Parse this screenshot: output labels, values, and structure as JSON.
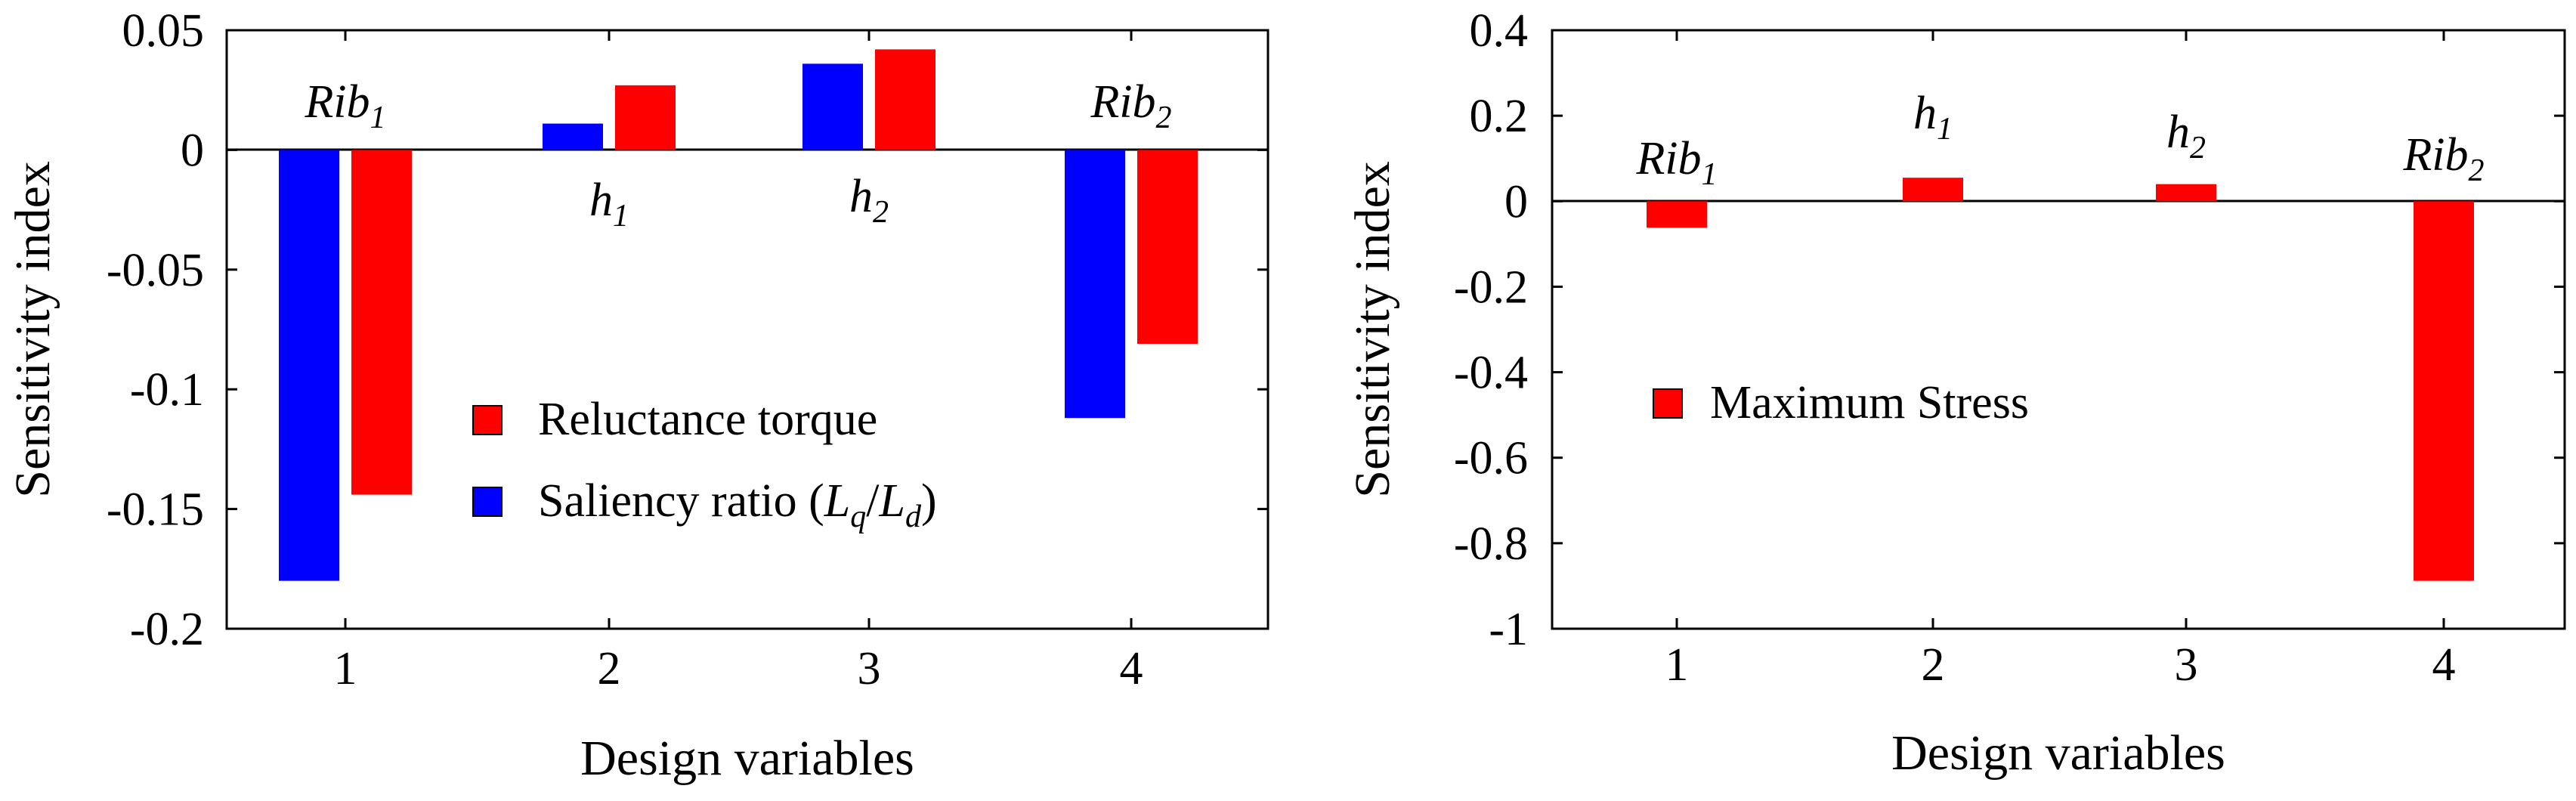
{
  "chart_data": [
    {
      "type": "bar",
      "xlabel": "Design variables",
      "ylabel": "Sensitivity index",
      "categories": [
        "1",
        "2",
        "3",
        "4"
      ],
      "ylim": [
        -0.2,
        0.05
      ],
      "yticks": [
        0.05,
        0,
        -0.05,
        -0.1,
        -0.15,
        -0.2
      ],
      "ytick_labels": [
        "0.05",
        "0",
        "-0.05",
        "-0.1",
        "-0.15",
        "-0.2"
      ],
      "series": [
        {
          "name": "Saliency ratio (Lq/Ld)",
          "label_main": "Saliency ratio (",
          "label_q": "L",
          "label_q_sub": "q",
          "label_slash": "/",
          "label_d": "L",
          "label_d_sub": "d",
          "label_close": ")",
          "color": "#0000ff",
          "values": [
            -0.18,
            0.011,
            0.036,
            -0.112
          ]
        },
        {
          "name": "Reluctance torque",
          "color": "#ff0000",
          "values": [
            -0.144,
            0.027,
            0.042,
            -0.081
          ]
        }
      ],
      "legend_order": [
        1,
        0
      ],
      "legend_position": "center",
      "variable_labels": [
        {
          "base": "Rib",
          "sub": "1"
        },
        {
          "base": "h",
          "sub": "1"
        },
        {
          "base": "h",
          "sub": "2"
        },
        {
          "base": "Rib",
          "sub": "2"
        }
      ]
    },
    {
      "type": "bar",
      "xlabel": "Design variables",
      "ylabel": "Sensitivity index",
      "categories": [
        "1",
        "2",
        "3",
        "4"
      ],
      "ylim": [
        -1,
        0.4
      ],
      "yticks": [
        0.4,
        0.2,
        0,
        -0.2,
        -0.4,
        -0.6,
        -0.8,
        -1
      ],
      "ytick_labels": [
        "0.4",
        "0.2",
        "0",
        "-0.2",
        "-0.4",
        "-0.6",
        "-0.8",
        "-1"
      ],
      "series": [
        {
          "name": "Maximum Stress",
          "color": "#ff0000",
          "values": [
            -0.062,
            0.055,
            0.04,
            -0.888
          ]
        }
      ],
      "legend_order": [
        0
      ],
      "legend_position": "center-left",
      "variable_labels": [
        {
          "base": "Rib",
          "sub": "1"
        },
        {
          "base": "h",
          "sub": "1"
        },
        {
          "base": "h",
          "sub": "2"
        },
        {
          "base": "Rib",
          "sub": "2"
        }
      ]
    }
  ]
}
